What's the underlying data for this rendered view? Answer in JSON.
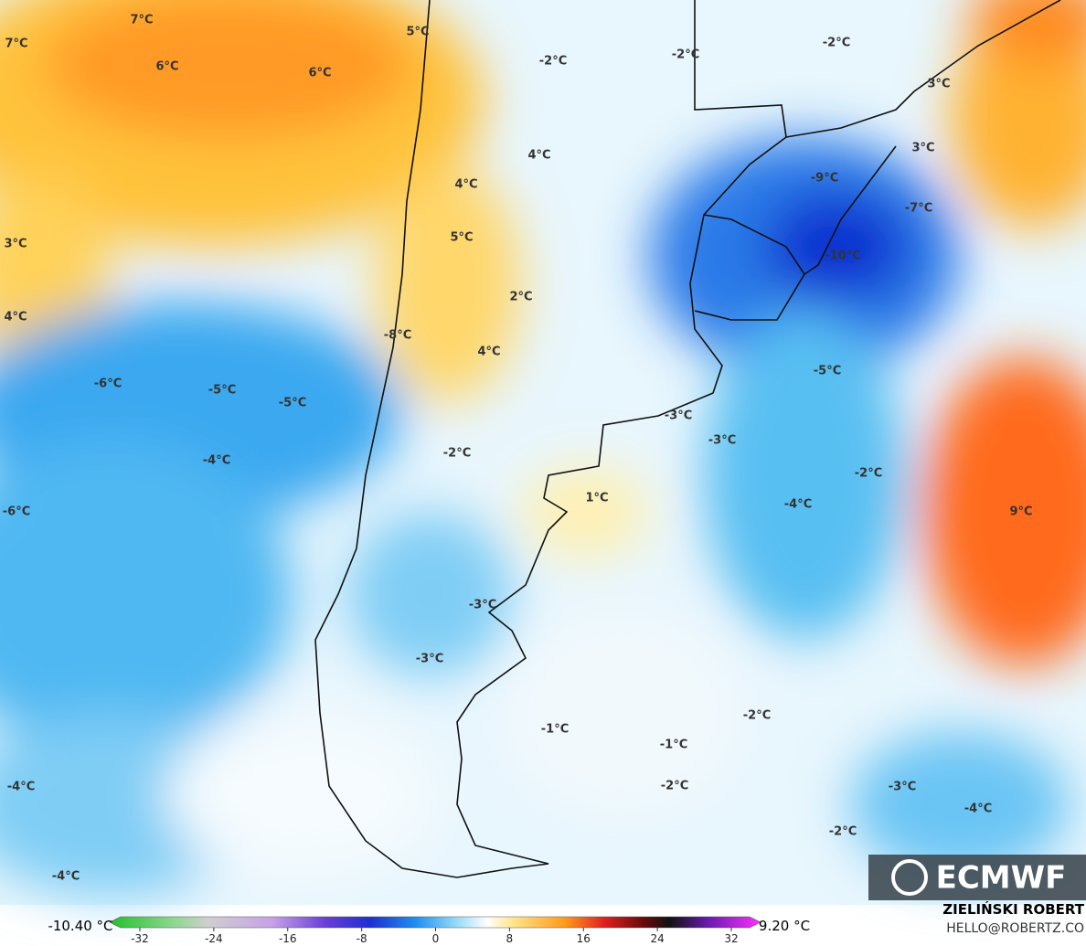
{
  "map": {
    "labels": [
      "7°C",
      "7°C",
      "5°C",
      "6°C",
      "6°C",
      "-2°C",
      "-2°C",
      "-2°C",
      "3°C",
      "3°C",
      "4°C",
      "-9°C",
      "4°C",
      "-7°C",
      "3°C",
      "5°C",
      "-10°C",
      "2°C",
      "4°C",
      "-8°C",
      "4°C",
      "-5°C",
      "-6°C",
      "-5°C",
      "-5°C",
      "-3°C",
      "-3°C",
      "-2°C",
      "-4°C",
      "-2°C",
      "1°C",
      "-4°C",
      "-6°C",
      "9°C",
      "-3°C",
      "-3°C",
      "-2°C",
      "-1°C",
      "-1°C",
      "-2°C",
      "-4°C",
      "-3°C",
      "-4°C",
      "-2°C",
      "-4°C"
    ],
    "logo": "ECMWF"
  },
  "colorbar": {
    "min_label": "-10.40 °C",
    "max_label": "9.20 °C",
    "ticks": [
      -32,
      -24,
      -16,
      -8,
      0,
      8,
      16,
      24,
      32
    ]
  },
  "credit": {
    "name": "ZIELIŃSKI ROBERT",
    "contact": "HELLO@ROBERTZ.CO"
  }
}
